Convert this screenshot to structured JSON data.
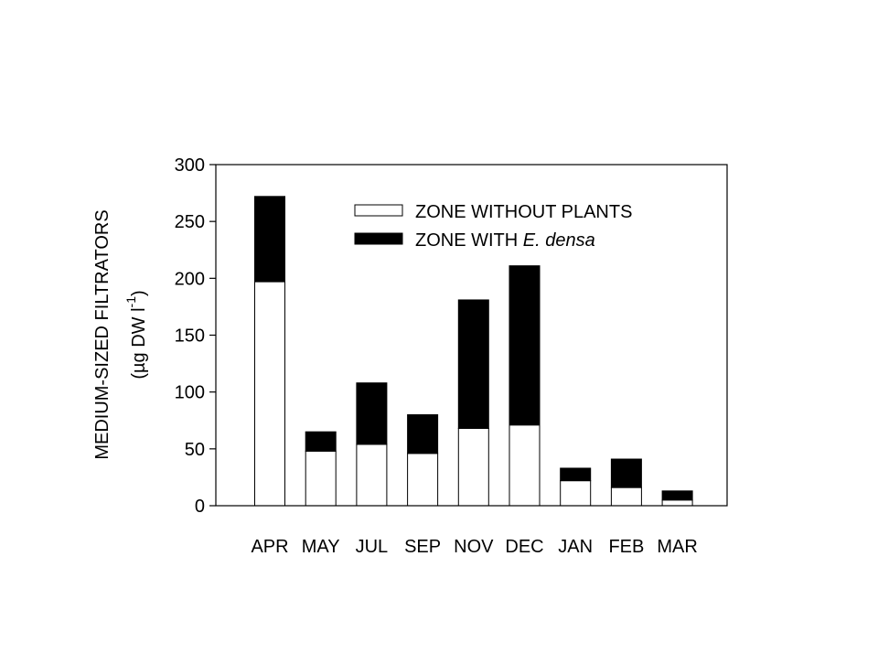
{
  "chart_data": {
    "type": "bar",
    "stacked": true,
    "categories": [
      "APR",
      "MAY",
      "JUL",
      "SEP",
      "NOV",
      "DEC",
      "JAN",
      "FEB",
      "MAR"
    ],
    "series": [
      {
        "name": "ZONE WITHOUT PLANTS",
        "color": "#ffffff",
        "values": [
          197,
          48,
          54,
          46,
          68,
          71,
          22,
          16,
          5
        ]
      },
      {
        "name": "ZONE WITH E. densa",
        "color": "#000000",
        "values": [
          75,
          17,
          54,
          34,
          113,
          140,
          11,
          25,
          8
        ]
      }
    ],
    "totals": [
      272,
      65,
      108,
      80,
      181,
      211,
      33,
      41,
      13
    ],
    "ylabel": {
      "line1": "MEDIUM-SIZED FILTRATORS",
      "line2": "(µg DW l",
      "superscript": "-1",
      "close": ")"
    },
    "ylim": [
      0,
      300
    ],
    "yticks": [
      0,
      50,
      100,
      150,
      200,
      250,
      300
    ],
    "legend": {
      "position": "top-right",
      "entries": [
        {
          "label": "ZONE WITHOUT PLANTS",
          "italic_part": "",
          "suffix": ""
        },
        {
          "label": "ZONE WITH ",
          "italic_part": "E. densa",
          "suffix": ""
        }
      ]
    },
    "grid": false
  }
}
